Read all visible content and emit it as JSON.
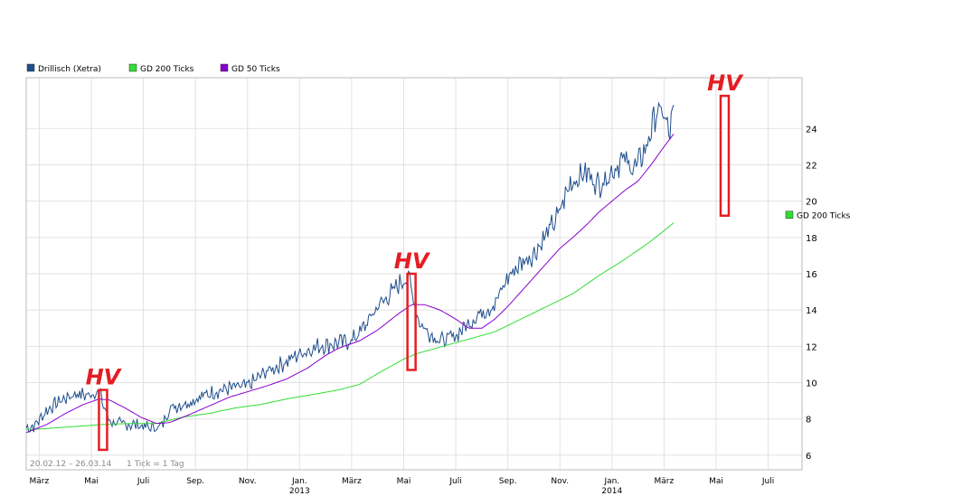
{
  "chart_data": {
    "type": "line",
    "legend": [
      {
        "name": "Drillisch (Xetra)",
        "color": "#1f4e8c"
      },
      {
        "name": "GD 200 Ticks",
        "color": "#33dd33"
      },
      {
        "name": "GD 50 Ticks",
        "color": "#8800cc"
      }
    ],
    "legend_position": "top-left",
    "grid": true,
    "yaxis": {
      "position": "right",
      "ticks": [
        6,
        8,
        10,
        12,
        14,
        16,
        18,
        20,
        22,
        24
      ],
      "ylim": [
        5.2,
        26.8
      ]
    },
    "xaxis": {
      "ticks": [
        {
          "label": "März",
          "t": 0.5
        },
        {
          "label": "Mai",
          "t": 2.5
        },
        {
          "label": "Juli",
          "t": 4.5
        },
        {
          "label": "Sep.",
          "t": 6.5
        },
        {
          "label": "Nov.",
          "t": 8.5
        },
        {
          "label": "Jan.",
          "sublabel": "2013",
          "t": 10.5
        },
        {
          "label": "März",
          "t": 12.5
        },
        {
          "label": "Mai",
          "t": 14.5
        },
        {
          "label": "Juli",
          "t": 16.5
        },
        {
          "label": "Sep.",
          "t": 18.5
        },
        {
          "label": "Nov.",
          "t": 20.5
        },
        {
          "label": "Jan.",
          "sublabel": "2014",
          "t": 22.5
        },
        {
          "label": "März",
          "t": 24.5
        },
        {
          "label": "Mai",
          "t": 26.5
        },
        {
          "label": "Juli",
          "t": 28.5
        }
      ],
      "xlim": [
        0,
        29.8
      ],
      "data_end": 24.87
    },
    "date_range": "20.02.12 – 26.03.14",
    "tick_note": "1 Tick = 1 Tag",
    "end_label": {
      "series": "GD 200 Ticks",
      "text": "GD 200 Ticks",
      "color": "#33dd33"
    },
    "series": [
      {
        "name": "Drillisch (Xetra)",
        "color": "#1f4e8c",
        "anchors": [
          [
            0,
            7.5
          ],
          [
            0.3,
            7.6
          ],
          [
            0.8,
            8.5
          ],
          [
            1.3,
            9.0
          ],
          [
            1.9,
            9.4
          ],
          [
            2.4,
            9.3
          ],
          [
            2.8,
            9.6
          ],
          [
            2.95,
            8.8
          ],
          [
            3.2,
            7.9
          ],
          [
            3.6,
            7.7
          ],
          [
            4.2,
            7.7
          ],
          [
            4.8,
            7.5
          ],
          [
            5.2,
            7.6
          ],
          [
            5.5,
            8.6
          ],
          [
            6.2,
            8.9
          ],
          [
            7.0,
            9.4
          ],
          [
            7.8,
            9.7
          ],
          [
            8.5,
            9.8
          ],
          [
            9.2,
            10.6
          ],
          [
            9.8,
            11.0
          ],
          [
            10.5,
            11.6
          ],
          [
            11.2,
            12.0
          ],
          [
            12.0,
            12.2
          ],
          [
            12.5,
            12.3
          ],
          [
            13.0,
            13.1
          ],
          [
            13.5,
            14.2
          ],
          [
            14.0,
            14.9
          ],
          [
            14.5,
            15.7
          ],
          [
            14.75,
            15.6
          ],
          [
            14.9,
            14.4
          ],
          [
            15.1,
            13.3
          ],
          [
            15.6,
            12.6
          ],
          [
            16.0,
            12.3
          ],
          [
            16.5,
            12.6
          ],
          [
            17.0,
            13.3
          ],
          [
            17.5,
            13.9
          ],
          [
            18.0,
            14.3
          ],
          [
            18.5,
            15.8
          ],
          [
            19.0,
            16.6
          ],
          [
            19.5,
            17.1
          ],
          [
            20.0,
            18.2
          ],
          [
            20.4,
            19.1
          ],
          [
            20.9,
            21.0
          ],
          [
            21.5,
            21.6
          ],
          [
            22.0,
            20.9
          ],
          [
            22.4,
            21.5
          ],
          [
            22.9,
            22.3
          ],
          [
            23.4,
            21.8
          ],
          [
            23.8,
            22.9
          ],
          [
            24.2,
            24.9
          ],
          [
            24.5,
            24.8
          ],
          [
            24.7,
            23.6
          ],
          [
            24.87,
            25.1
          ]
        ]
      },
      {
        "name": "GD 200 Ticks",
        "color": "#33dd33",
        "anchors": [
          [
            0,
            7.4
          ],
          [
            1.0,
            7.5
          ],
          [
            2.0,
            7.6
          ],
          [
            3.0,
            7.7
          ],
          [
            4.0,
            7.75
          ],
          [
            5.0,
            7.75
          ],
          [
            6.0,
            8.1
          ],
          [
            7.0,
            8.3
          ],
          [
            8.0,
            8.6
          ],
          [
            9.0,
            8.8
          ],
          [
            10.0,
            9.1
          ],
          [
            11.0,
            9.35
          ],
          [
            12.0,
            9.6
          ],
          [
            12.8,
            9.9
          ],
          [
            13.5,
            10.5
          ],
          [
            14.0,
            10.9
          ],
          [
            14.5,
            11.3
          ],
          [
            15.0,
            11.6
          ],
          [
            16.0,
            12.0
          ],
          [
            17.0,
            12.4
          ],
          [
            18.0,
            12.8
          ],
          [
            19.0,
            13.5
          ],
          [
            20.0,
            14.2
          ],
          [
            21.0,
            14.9
          ],
          [
            22.0,
            15.9
          ],
          [
            23.0,
            16.8
          ],
          [
            24.0,
            17.8
          ],
          [
            24.87,
            18.8
          ]
        ]
      },
      {
        "name": "GD 50 Ticks",
        "color": "#8800cc",
        "anchors": [
          [
            0,
            7.25
          ],
          [
            0.8,
            7.7
          ],
          [
            1.5,
            8.3
          ],
          [
            2.2,
            8.8
          ],
          [
            2.8,
            9.1
          ],
          [
            3.2,
            9.05
          ],
          [
            3.8,
            8.6
          ],
          [
            4.4,
            8.1
          ],
          [
            5.0,
            7.75
          ],
          [
            5.5,
            7.8
          ],
          [
            6.2,
            8.2
          ],
          [
            7.0,
            8.7
          ],
          [
            7.8,
            9.2
          ],
          [
            8.5,
            9.5
          ],
          [
            9.2,
            9.8
          ],
          [
            10.0,
            10.2
          ],
          [
            10.8,
            10.8
          ],
          [
            11.5,
            11.5
          ],
          [
            12.0,
            11.9
          ],
          [
            12.8,
            12.3
          ],
          [
            13.5,
            12.9
          ],
          [
            14.3,
            13.8
          ],
          [
            14.8,
            14.3
          ],
          [
            15.3,
            14.3
          ],
          [
            15.9,
            14.0
          ],
          [
            16.5,
            13.5
          ],
          [
            17.0,
            13.0
          ],
          [
            17.5,
            13.0
          ],
          [
            18.0,
            13.5
          ],
          [
            18.5,
            14.2
          ],
          [
            19.0,
            15.0
          ],
          [
            19.5,
            15.8
          ],
          [
            20.0,
            16.6
          ],
          [
            20.5,
            17.4
          ],
          [
            21.0,
            18.0
          ],
          [
            21.6,
            18.8
          ],
          [
            22.0,
            19.4
          ],
          [
            22.5,
            20.0
          ],
          [
            23.0,
            20.6
          ],
          [
            23.5,
            21.1
          ],
          [
            24.0,
            22.0
          ],
          [
            24.5,
            23.0
          ],
          [
            24.87,
            23.7
          ]
        ]
      }
    ]
  },
  "annotations": [
    {
      "text": "HV",
      "t": 2.95,
      "y_top": 9.6,
      "y_bottom": 6.3
    },
    {
      "text": "HV",
      "t": 14.8,
      "y_top": 16.0,
      "y_bottom": 10.7
    },
    {
      "text": "HV",
      "t": 26.83,
      "y_top": 25.8,
      "y_bottom": 19.2
    }
  ]
}
